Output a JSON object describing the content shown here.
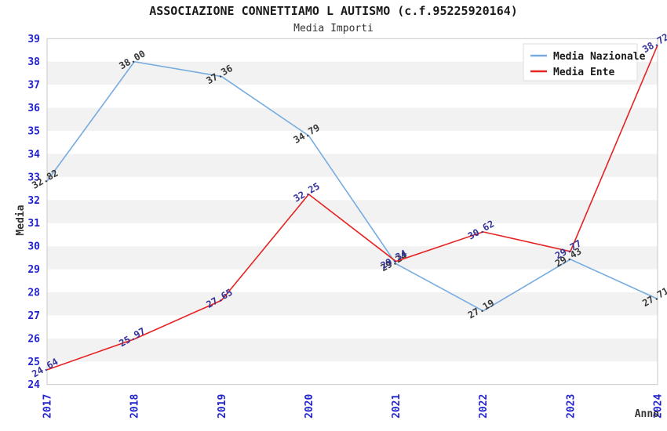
{
  "chart": {
    "title": "ASSOCIAZIONE CONNETTIAMO L AUTISMO (c.f.95225920164)",
    "subtitle": "Media Importi",
    "ylabel": "Media",
    "xlabel": "Anno"
  },
  "chart_data": {
    "type": "line",
    "title": "ASSOCIAZIONE CONNETTIAMO L AUTISMO (c.f.95225920164)",
    "subtitle": "Media Importi",
    "xlabel": "Anno",
    "ylabel": "Media",
    "categories": [
      "2017",
      "2018",
      "2019",
      "2020",
      "2021",
      "2022",
      "2023",
      "2024"
    ],
    "series": [
      {
        "name": "Media Nazionale",
        "color": "#76ace0",
        "label_color": "#383838",
        "values": [
          32.82,
          38.0,
          37.36,
          34.79,
          29.24,
          27.19,
          29.43,
          27.71
        ]
      },
      {
        "name": "Media Ente",
        "color": "#e62222",
        "label_color": "#333399",
        "values": [
          24.64,
          25.97,
          27.65,
          32.25,
          29.34,
          30.62,
          29.77,
          38.72
        ]
      }
    ],
    "ylim": [
      24,
      39
    ],
    "y_tick_step": 1,
    "tick_color": "#2222cc",
    "band_color": "#f2f2f2",
    "border_color": "#c8c8c8",
    "grid": "horizontal-bands",
    "legend_position": "top-right"
  }
}
